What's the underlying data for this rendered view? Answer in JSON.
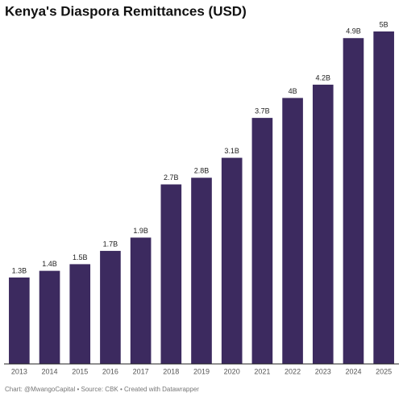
{
  "chart_data": {
    "type": "bar",
    "title": "Kenya's Diaspora Remittances (USD)",
    "categories": [
      "2013",
      "2014",
      "2015",
      "2016",
      "2017",
      "2018",
      "2019",
      "2020",
      "2021",
      "2022",
      "2023",
      "2024",
      "2025"
    ],
    "values": [
      1.3,
      1.4,
      1.5,
      1.7,
      1.9,
      2.7,
      2.8,
      3.1,
      3.7,
      4,
      4.2,
      4.9,
      5
    ],
    "value_labels": [
      "1.3B",
      "1.4B",
      "1.5B",
      "1.7B",
      "1.9B",
      "2.7B",
      "2.8B",
      "3.1B",
      "3.7B",
      "4B",
      "4.2B",
      "4.9B",
      "5B"
    ],
    "color": "#3c2a5f",
    "ylim": [
      0,
      5
    ],
    "footer": "Chart: @MwangoCapital • Source: CBK • Created with Datawrapper"
  }
}
